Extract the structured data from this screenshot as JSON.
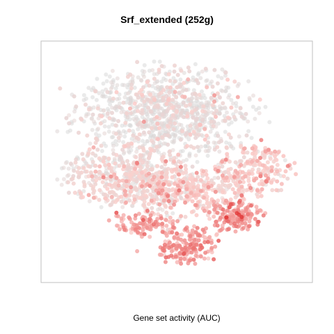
{
  "chart_data": {
    "type": "scatter",
    "title": "Srf_extended (252g)",
    "xlabel": "Gene set activity (AUC)",
    "ylabel": "",
    "grid": false,
    "legend": "none",
    "colors": {
      "low": "#d8d8d8",
      "mid": "#fbd0cd",
      "high": "#e23a3a",
      "frame": "#bfbfbf"
    },
    "point_density": 2600,
    "clusters": [
      {
        "cx": 0.45,
        "cy": 0.28,
        "rx": 0.38,
        "ry": 0.22,
        "w": 0.4,
        "level": 0.05
      },
      {
        "cx": 0.3,
        "cy": 0.55,
        "rx": 0.3,
        "ry": 0.14,
        "w": 0.18,
        "level": 0.18
      },
      {
        "cx": 0.52,
        "cy": 0.62,
        "rx": 0.3,
        "ry": 0.12,
        "w": 0.17,
        "level": 0.28
      },
      {
        "cx": 0.8,
        "cy": 0.52,
        "rx": 0.16,
        "ry": 0.12,
        "w": 0.08,
        "level": 0.32
      },
      {
        "cx": 0.54,
        "cy": 0.86,
        "rx": 0.13,
        "ry": 0.09,
        "w": 0.07,
        "level": 0.55
      },
      {
        "cx": 0.72,
        "cy": 0.73,
        "rx": 0.12,
        "ry": 0.07,
        "w": 0.06,
        "level": 0.55
      },
      {
        "cx": 0.38,
        "cy": 0.77,
        "rx": 0.15,
        "ry": 0.06,
        "w": 0.04,
        "level": 0.5
      }
    ]
  }
}
